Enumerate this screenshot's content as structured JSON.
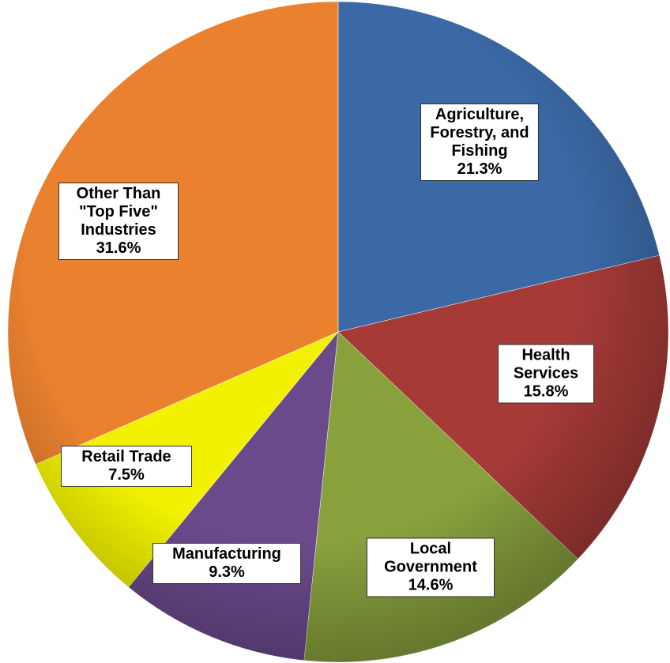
{
  "chart_data": {
    "type": "pie",
    "categories": [
      "Agriculture, Forestry, and Fishing",
      "Health Services",
      "Local Government",
      "Manufacturing",
      "Retail Trade",
      "Other Than \"Top Five\" Industries"
    ],
    "values": [
      21.3,
      15.8,
      14.6,
      9.3,
      7.5,
      31.6
    ],
    "value_labels": [
      "21.3%",
      "15.8%",
      "14.6%",
      "9.3%",
      "7.5%",
      "31.6%"
    ],
    "colors": [
      "#3b69a6",
      "#a53a37",
      "#88a13d",
      "#6b4a8c",
      "#f2f200",
      "#e9812f"
    ]
  }
}
